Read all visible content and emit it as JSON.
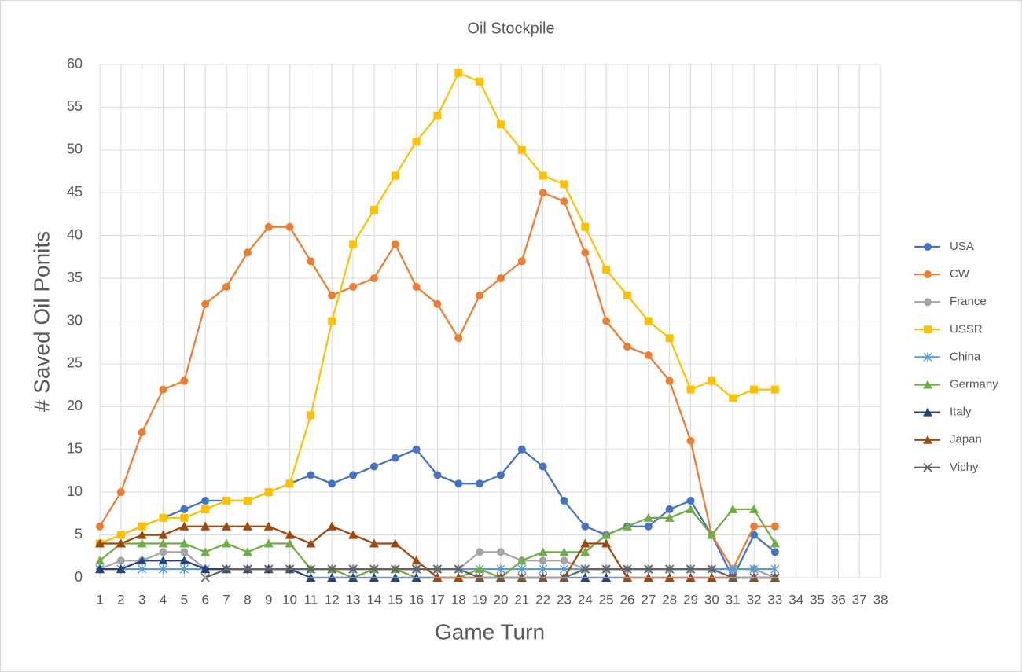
{
  "chart_data": {
    "type": "line",
    "title": "Oil Stockpile",
    "y_label": "# Saved Oil Ponits",
    "x_label": "Game Turn",
    "categories": [
      1,
      2,
      3,
      4,
      5,
      6,
      7,
      8,
      9,
      10,
      11,
      12,
      13,
      14,
      15,
      16,
      17,
      18,
      19,
      20,
      21,
      22,
      23,
      24,
      25,
      26,
      27,
      28,
      29,
      30,
      31,
      32,
      33,
      34,
      35,
      36,
      37,
      38
    ],
    "ylim": [
      0,
      60
    ],
    "yticks": [
      0,
      5,
      10,
      15,
      20,
      25,
      30,
      35,
      40,
      45,
      50,
      55,
      60
    ],
    "grid": true,
    "legend": "right",
    "series": [
      {
        "name": "USA",
        "color": "#4472c4",
        "marker": "circle",
        "values": [
          4,
          5,
          6,
          7,
          8,
          9,
          9,
          9,
          10,
          11,
          12,
          11,
          12,
          13,
          14,
          15,
          12,
          11,
          11,
          12,
          15,
          13,
          9,
          6,
          5,
          6,
          6,
          8,
          9,
          5,
          0,
          5,
          3,
          null,
          null,
          null,
          null,
          null
        ]
      },
      {
        "name": "CW",
        "color": "#ed7d31",
        "marker": "circle",
        "values": [
          6,
          10,
          17,
          22,
          23,
          32,
          34,
          38,
          41,
          41,
          37,
          33,
          34,
          35,
          39,
          34,
          32,
          28,
          33,
          35,
          37,
          45,
          44,
          38,
          30,
          27,
          26,
          23,
          16,
          5,
          1,
          6,
          6,
          null,
          null,
          null,
          null,
          null
        ]
      },
      {
        "name": "France",
        "color": "#a5a5a5",
        "marker": "circle",
        "values": [
          1,
          2,
          2,
          3,
          3,
          1,
          1,
          1,
          1,
          1,
          1,
          1,
          1,
          1,
          1,
          1,
          1,
          1,
          3,
          3,
          2,
          2,
          2,
          1,
          1,
          1,
          1,
          1,
          1,
          1,
          1,
          1,
          0,
          null,
          null,
          null,
          null,
          null
        ]
      },
      {
        "name": "USSR",
        "color": "#ffc000",
        "marker": "square",
        "values": [
          4,
          5,
          6,
          7,
          7,
          8,
          9,
          9,
          10,
          11,
          19,
          30,
          39,
          43,
          47,
          51,
          54,
          59,
          58,
          53,
          50,
          47,
          46,
          41,
          36,
          33,
          30,
          28,
          22,
          23,
          21,
          22,
          22,
          null,
          null,
          null,
          null,
          null
        ]
      },
      {
        "name": "China",
        "color": "#5b9bd5",
        "marker": "star",
        "values": [
          1,
          1,
          1,
          1,
          1,
          1,
          1,
          1,
          1,
          1,
          1,
          1,
          1,
          1,
          1,
          1,
          1,
          1,
          1,
          1,
          1,
          1,
          1,
          1,
          1,
          1,
          1,
          1,
          1,
          1,
          1,
          1,
          1,
          null,
          null,
          null,
          null,
          null
        ]
      },
      {
        "name": "Germany",
        "color": "#70ad47",
        "marker": "triangle",
        "values": [
          2,
          4,
          4,
          4,
          4,
          3,
          4,
          3,
          4,
          4,
          1,
          1,
          0,
          1,
          1,
          0,
          0,
          0,
          1,
          0,
          2,
          3,
          3,
          3,
          5,
          6,
          7,
          7,
          8,
          5,
          8,
          8,
          4,
          null,
          null,
          null,
          null,
          null
        ]
      },
      {
        "name": "Italy",
        "color": "#264478",
        "marker": "triangle",
        "values": [
          1,
          1,
          2,
          2,
          2,
          1,
          1,
          1,
          1,
          1,
          0,
          0,
          0,
          0,
          0,
          0,
          0,
          0,
          0,
          0,
          0,
          0,
          0,
          0,
          0,
          0,
          0,
          0,
          0,
          0,
          0,
          0,
          0,
          null,
          null,
          null,
          null,
          null
        ]
      },
      {
        "name": "Japan",
        "color": "#9e480e",
        "marker": "triangle",
        "values": [
          4,
          4,
          5,
          5,
          6,
          6,
          6,
          6,
          6,
          5,
          4,
          6,
          5,
          4,
          4,
          2,
          0,
          0,
          0,
          0,
          0,
          0,
          0,
          4,
          4,
          0,
          0,
          0,
          0,
          0,
          0,
          0,
          0,
          null,
          null,
          null,
          null,
          null
        ]
      },
      {
        "name": "Vichy",
        "color": "#636363",
        "marker": "x",
        "values": [
          null,
          null,
          null,
          null,
          null,
          0,
          1,
          1,
          1,
          1,
          1,
          1,
          1,
          1,
          1,
          1,
          1,
          1,
          0,
          0,
          0,
          0,
          0,
          1,
          1,
          1,
          1,
          1,
          1,
          1,
          0,
          0,
          0,
          null,
          null,
          null,
          null,
          null
        ]
      }
    ]
  }
}
